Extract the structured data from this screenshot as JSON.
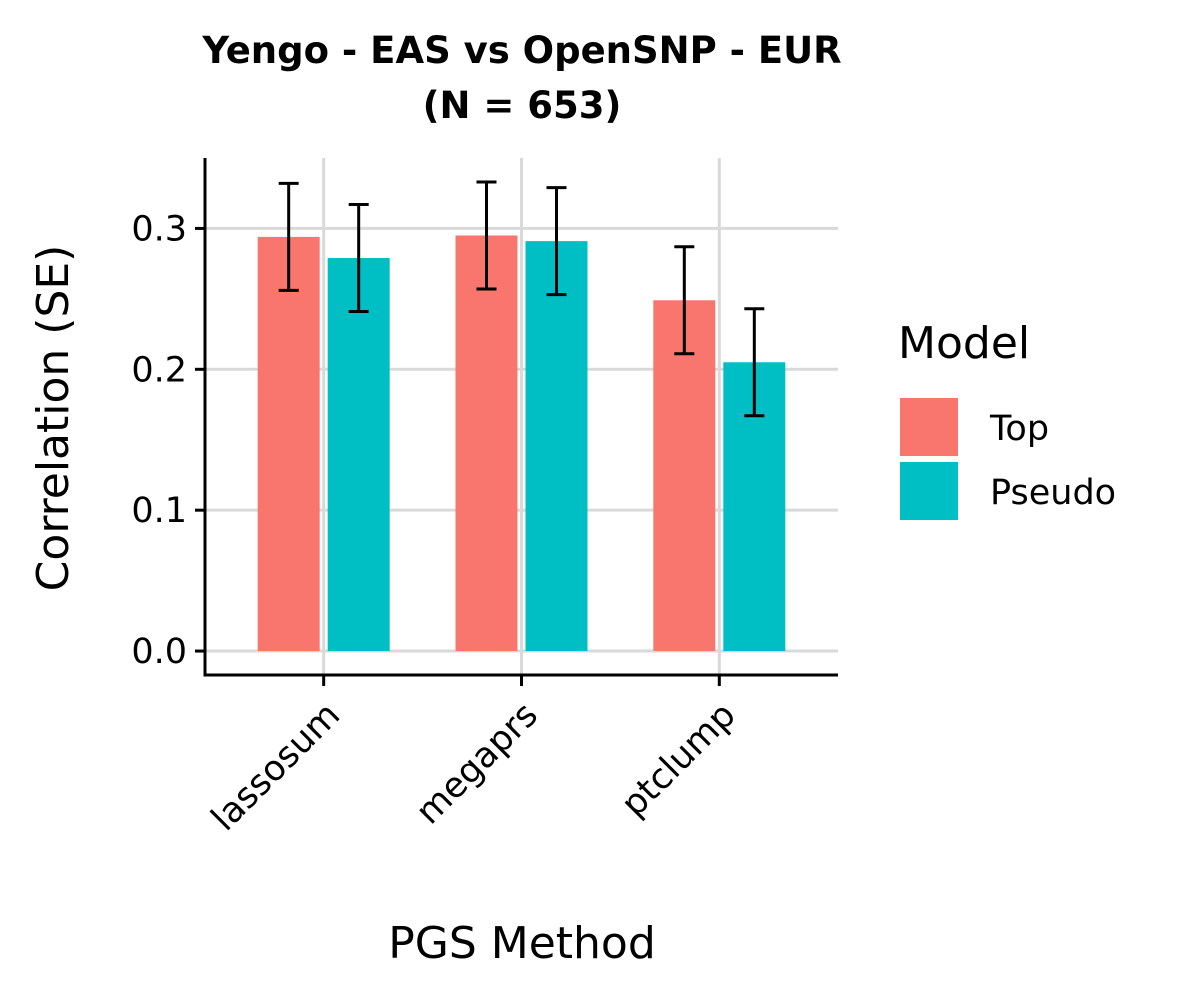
{
  "chart_data": {
    "type": "bar",
    "title": "Yengo - EAS vs OpenSNP - EUR",
    "subtitle": "(N = 653)",
    "xlabel": "PGS Method",
    "ylabel": "Correlation (SE)",
    "categories": [
      "lassosum",
      "megaprs",
      "ptclump"
    ],
    "ylim": [
      -0.017,
      0.35
    ],
    "yticks": [
      0.0,
      0.1,
      0.2,
      0.3
    ],
    "ytick_labels": [
      "0.0",
      "0.1",
      "0.2",
      "0.3"
    ],
    "grid": true,
    "legend": {
      "title": "Model",
      "position": "right"
    },
    "series": [
      {
        "name": "Top",
        "color": "#F8766D",
        "values": [
          0.294,
          0.295,
          0.249
        ],
        "se": [
          0.038,
          0.038,
          0.038
        ]
      },
      {
        "name": "Pseudo",
        "color": "#00BFC4",
        "values": [
          0.279,
          0.291,
          0.205
        ],
        "se": [
          0.038,
          0.038,
          0.038
        ]
      }
    ]
  }
}
